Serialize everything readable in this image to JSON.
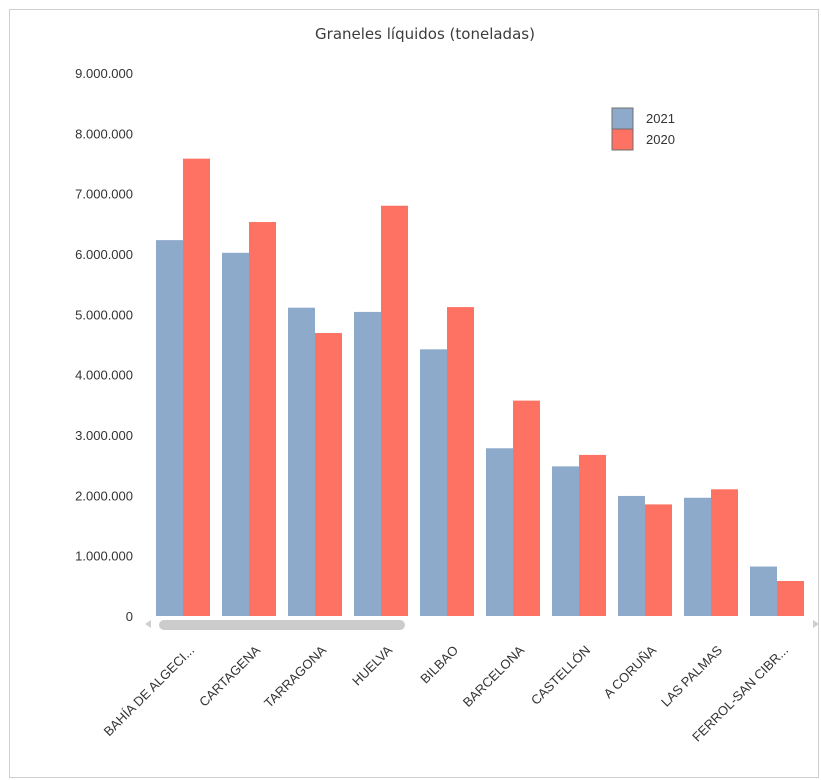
{
  "chart_data": {
    "type": "bar",
    "title": "Graneles líquidos (toneladas)",
    "xlabel": "",
    "ylabel": "",
    "categories": [
      "BAHÍA DE ALGECI...",
      "CARTAGENA",
      "TARRAGONA",
      "HUELVA",
      "BILBAO",
      "BARCELONA",
      "CASTELLÓN",
      "A CORUÑA",
      "LAS PALMAS",
      "FERROL-SAN CIBR..."
    ],
    "series": [
      {
        "name": "2021",
        "color": "#8eaacb",
        "values": [
          6230000,
          6020000,
          5110000,
          5040000,
          4420000,
          2780000,
          2480000,
          1990000,
          1960000,
          820000
        ]
      },
      {
        "name": "2020",
        "color": "#fd7262",
        "values": [
          7580000,
          6530000,
          4690000,
          6800000,
          5120000,
          3570000,
          2670000,
          1850000,
          2100000,
          580000
        ]
      }
    ],
    "ylim": [
      0,
      9000000
    ],
    "yticks": [
      "0",
      "1.000.000",
      "2.000.000",
      "3.000.000",
      "4.000.000",
      "5.000.000",
      "6.000.000",
      "7.000.000",
      "8.000.000",
      "9.000.000"
    ],
    "grid": false,
    "legend": "top-right"
  }
}
